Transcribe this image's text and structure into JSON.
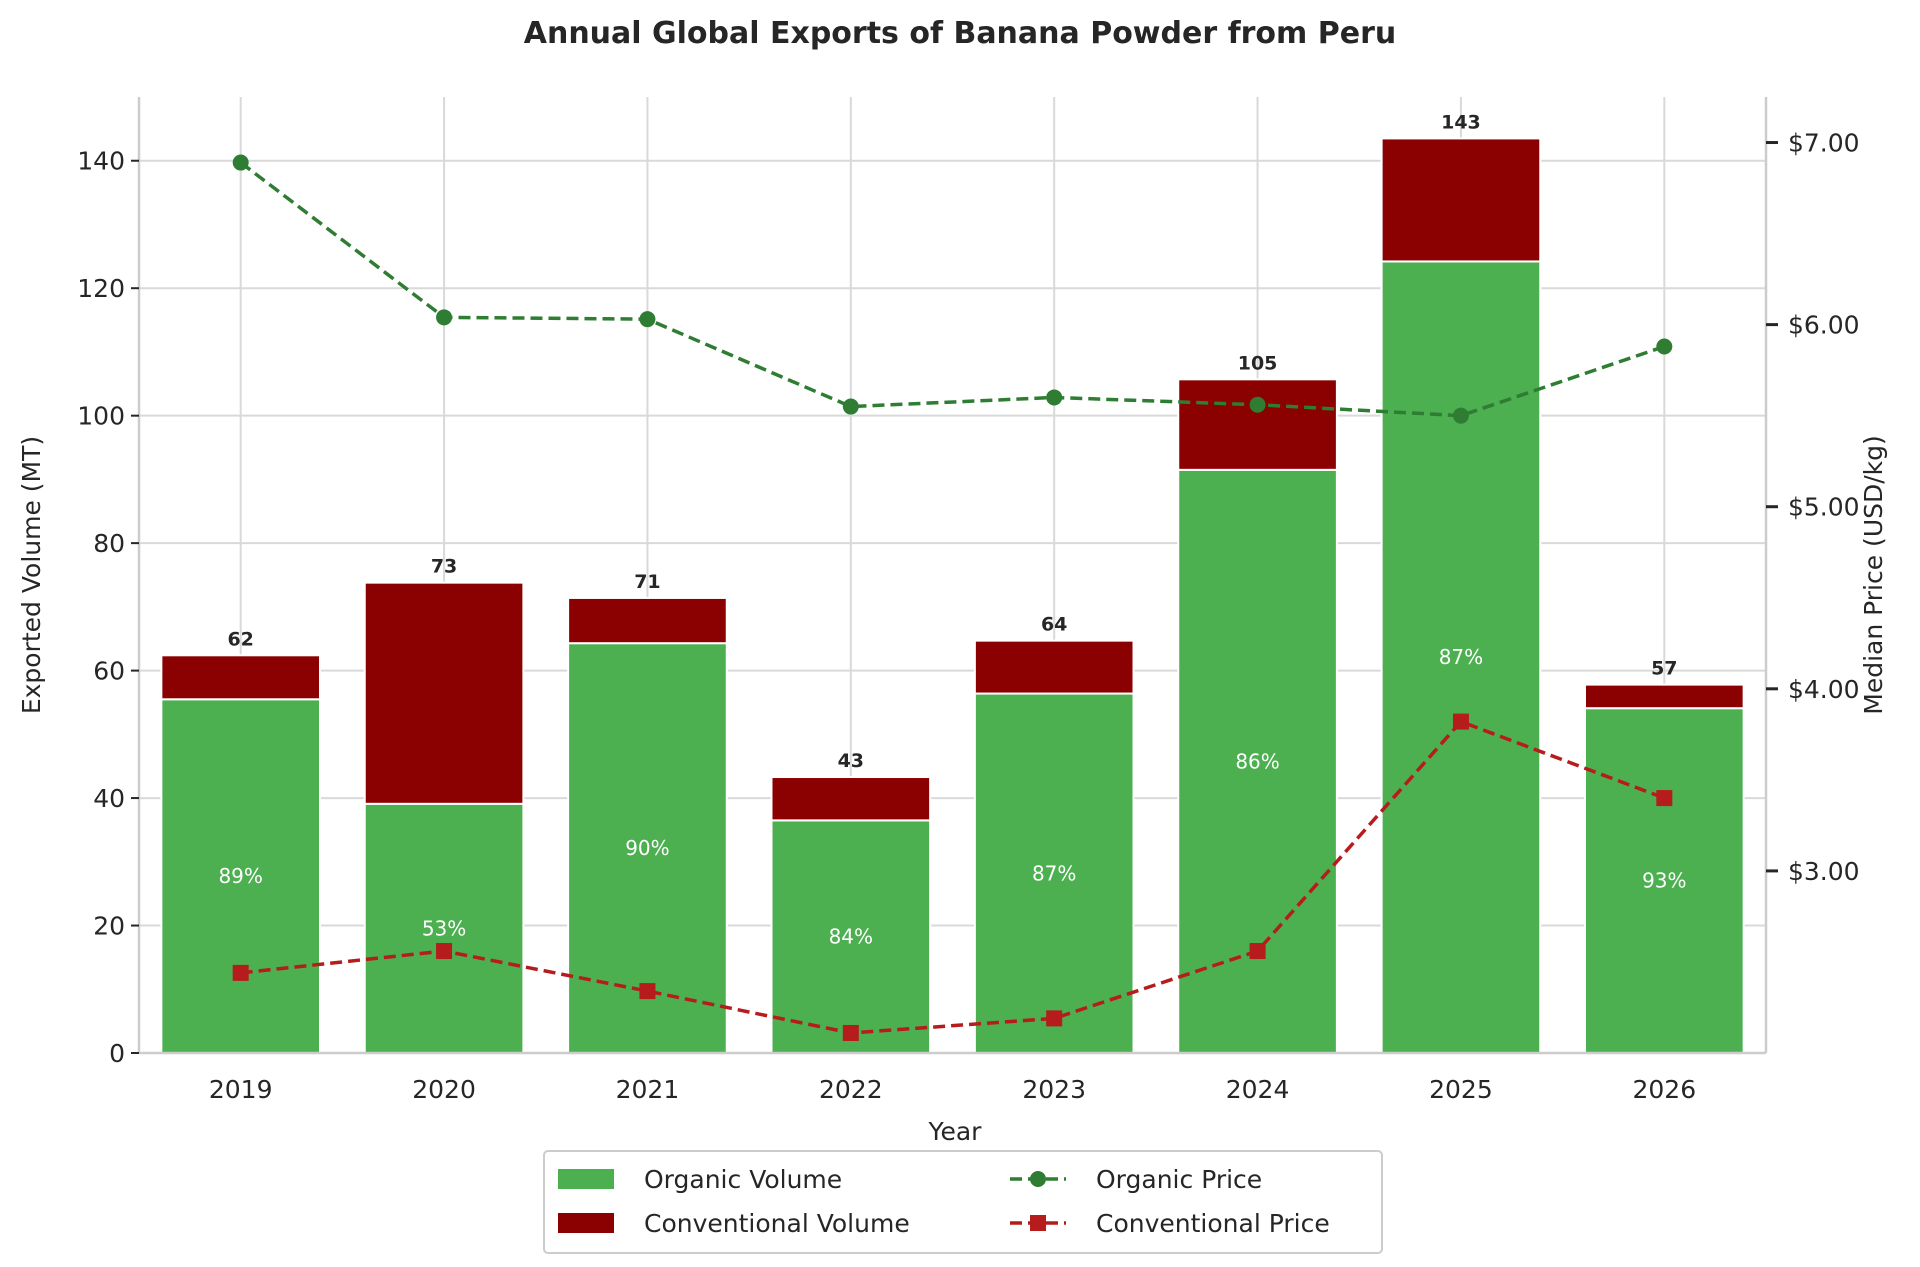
{
  "chart_data": {
    "type": "bar",
    "title": "Annual Global Exports of Banana Powder from Peru",
    "xlabel": "Year",
    "ylabel": "Exported Volume (MT)",
    "y2label": "Median Price (USD/kg)",
    "categories": [
      "2019",
      "2020",
      "2021",
      "2022",
      "2023",
      "2024",
      "2025",
      "2026"
    ],
    "ylim": [
      0,
      150
    ],
    "yticks": [
      0,
      20,
      40,
      60,
      80,
      100,
      120,
      140
    ],
    "y2lim": [
      2.0,
      7.25
    ],
    "y2ticks": [
      3.0,
      4.0,
      5.0,
      6.0,
      7.0
    ],
    "y2tick_labels": [
      "$3.00",
      "$4.00",
      "$5.00",
      "$6.00",
      "$7.00"
    ],
    "grid": true,
    "stacked": true,
    "series": [
      {
        "name": "Organic Volume",
        "kind": "bar",
        "axis": "left",
        "color": "#4caf50",
        "values": [
          55.5,
          39.1,
          64.3,
          36.5,
          56.4,
          91.5,
          124.2,
          54.1
        ]
      },
      {
        "name": "Conventional Volume",
        "kind": "bar",
        "axis": "left",
        "color": "#8b0000",
        "values": [
          6.9,
          34.7,
          7.1,
          6.8,
          8.3,
          14.2,
          19.3,
          3.7
        ]
      },
      {
        "name": "Organic Price",
        "kind": "line",
        "axis": "right",
        "color": "#2e7d32",
        "marker": "circle",
        "values": [
          6.89,
          6.04,
          6.03,
          5.55,
          5.6,
          5.56,
          5.5,
          5.88
        ]
      },
      {
        "name": "Conventional Price",
        "kind": "line",
        "axis": "right",
        "color": "#b71c1c",
        "marker": "square",
        "values": [
          2.44,
          2.56,
          2.34,
          2.11,
          2.19,
          2.56,
          3.82,
          3.4
        ]
      }
    ],
    "totals": [
      "62",
      "73",
      "71",
      "43",
      "64",
      "105",
      "143",
      "57"
    ],
    "organic_share": [
      "89%",
      "53%",
      "90%",
      "84%",
      "87%",
      "86%",
      "87%",
      "93%"
    ],
    "legend": {
      "placement": "bottom-center",
      "items": [
        "Organic Volume",
        "Conventional Volume",
        "Organic Price",
        "Conventional Price"
      ]
    }
  }
}
